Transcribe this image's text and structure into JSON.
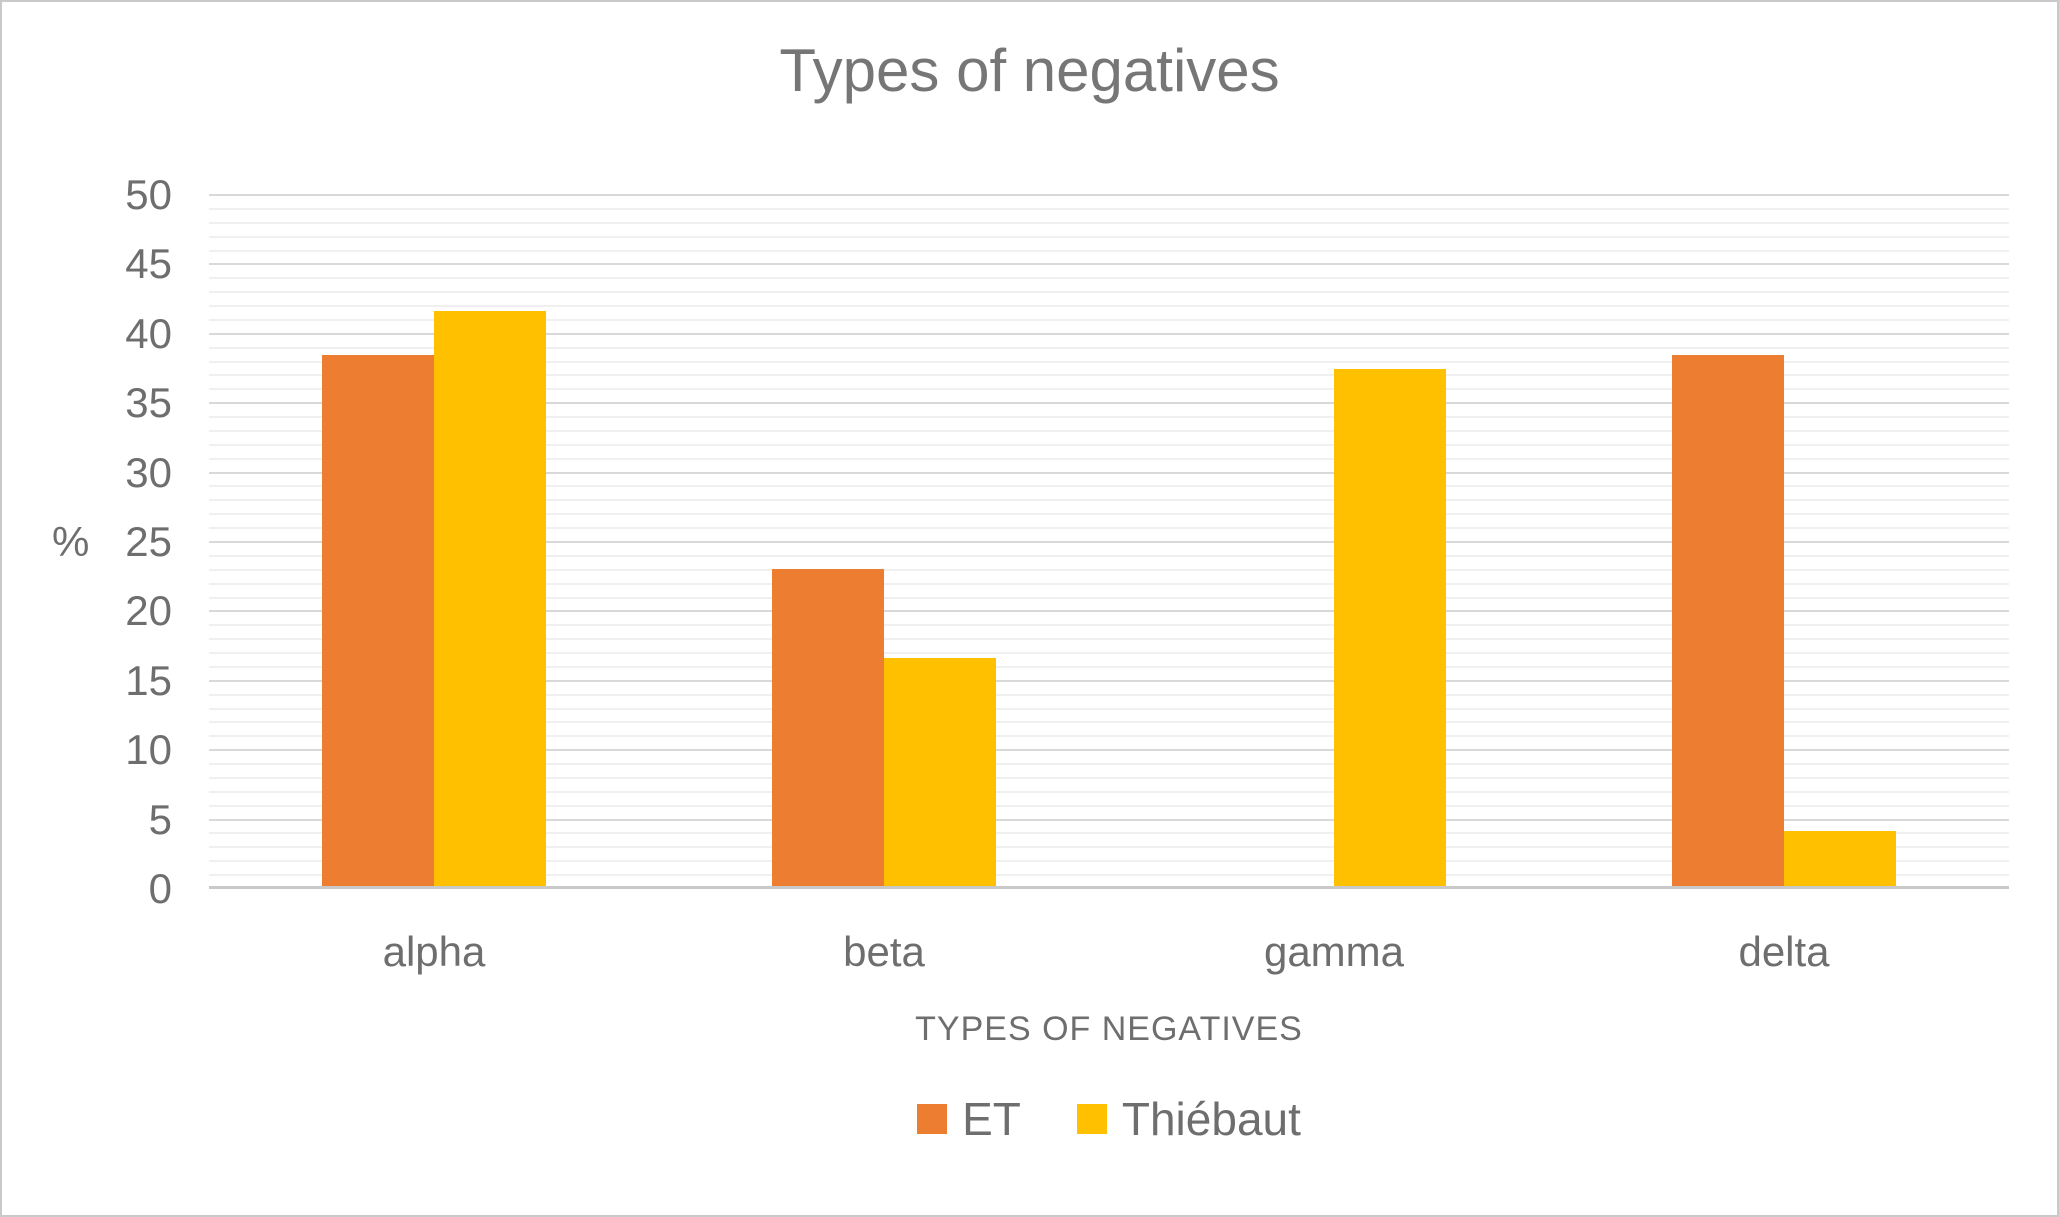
{
  "chart_data": {
    "type": "bar",
    "title": "Types of negatives",
    "xlabel": "TYPES OF NEGATIVES",
    "ylabel": "%",
    "categories": [
      "alpha",
      "beta",
      "gamma",
      "delta"
    ],
    "series": [
      {
        "name": "ET",
        "color": "#ED7D31",
        "values": [
          38.46,
          23.08,
          0,
          38.46
        ]
      },
      {
        "name": "Thiébaut",
        "color": "#FFC000",
        "values": [
          41.67,
          16.67,
          37.5,
          4.17
        ]
      }
    ],
    "ylim": [
      0,
      50
    ],
    "ytick_step": 5,
    "minor_unit": 1,
    "yticks": [
      0,
      5,
      10,
      15,
      20,
      25,
      30,
      35,
      40,
      45,
      50
    ],
    "grid": "horizontal major and minor",
    "legend_position": "bottom"
  },
  "colors": {
    "major_grid": "#d9d9d9",
    "minor_grid": "#f0f0f0",
    "baseline": "#c9c9c9",
    "text": "#6e6e6e",
    "title_text": "#767676",
    "border": "#c9c9c9",
    "background": "#ffffff"
  }
}
